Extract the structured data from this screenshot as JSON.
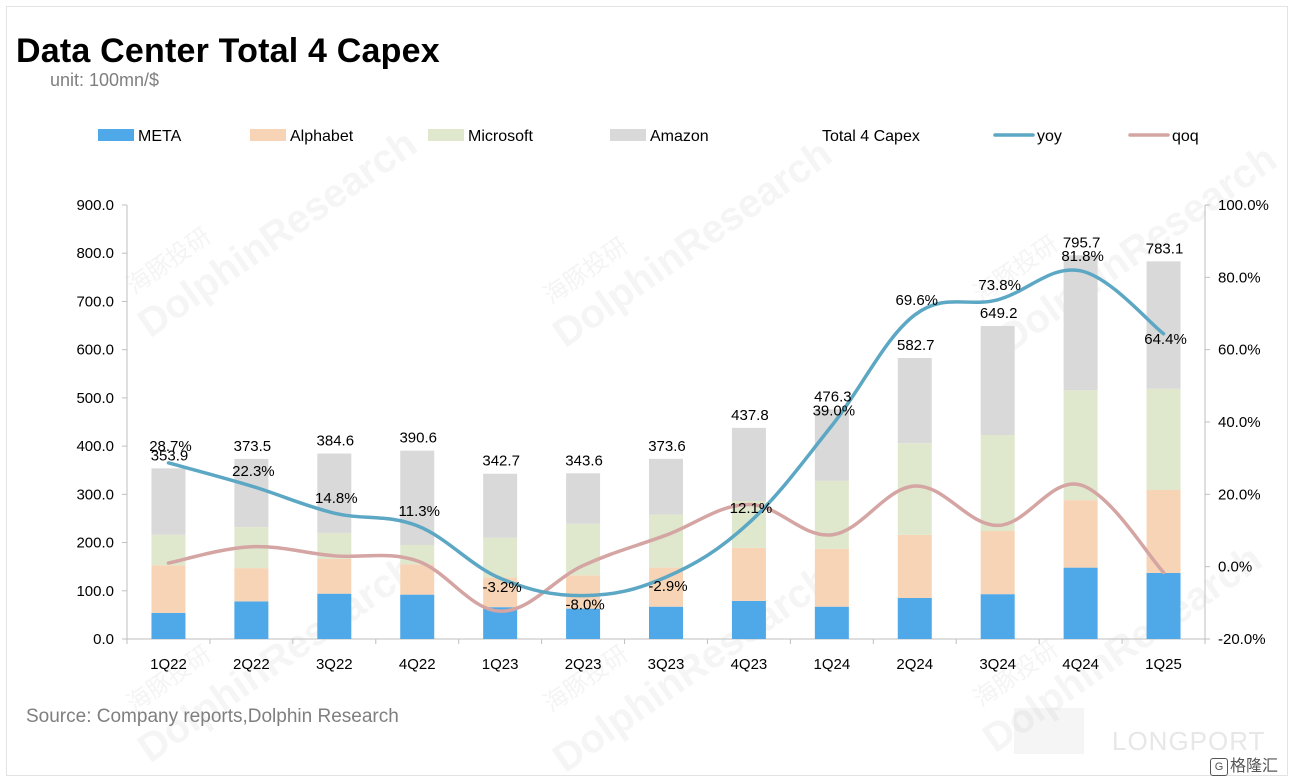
{
  "title": "Data Center Total 4 Capex",
  "unit": "unit: 100mn/$",
  "source": "Source: Company reports,Dolphin Research",
  "watermark": {
    "en": "DolphinResearch",
    "cn": "海豚投研",
    "brand": "LONGPORT",
    "logo_text": "格隆汇",
    "logo_glyph": "G"
  },
  "colors": {
    "meta": "#4fa9e8",
    "alphabet": "#f7d4b6",
    "microsoft": "#dfe8cc",
    "amazon": "#d9d9d9",
    "yoy": "#5ba7c4",
    "qoq": "#d4a5a3",
    "axis": "#bfbfbf",
    "text": "#000000"
  },
  "chart_data": {
    "type": "bar",
    "stacked": true,
    "categories": [
      "1Q22",
      "2Q22",
      "3Q22",
      "4Q22",
      "1Q23",
      "2Q23",
      "3Q23",
      "4Q23",
      "1Q24",
      "2Q24",
      "3Q24",
      "4Q24",
      "1Q25"
    ],
    "series": [
      {
        "name": "META",
        "key": "meta",
        "values": [
          54,
          78,
          94,
          92,
          66,
          63,
          67,
          79,
          67,
          85,
          93,
          148,
          137
        ]
      },
      {
        "name": "Alphabet",
        "key": "alphabet",
        "values": [
          99,
          69,
          72,
          63,
          62,
          69,
          81,
          110,
          120,
          131,
          131,
          140,
          172
        ]
      },
      {
        "name": "Microsoft",
        "key": "microsoft",
        "values": [
          63,
          85,
          54,
          40,
          82,
          107,
          110,
          97,
          141,
          190,
          199,
          228,
          210
        ]
      },
      {
        "name": "Amazon",
        "key": "amazon",
        "values": [
          137.9,
          141.5,
          164.6,
          195.6,
          132.7,
          104.6,
          115.6,
          151.8,
          148.3,
          176.7,
          226.2,
          279.7,
          264.1
        ]
      }
    ],
    "totals": {
      "name": "Total 4 Capex",
      "values": [
        353.9,
        373.5,
        384.6,
        390.6,
        342.7,
        343.6,
        373.6,
        437.8,
        476.3,
        582.7,
        649.2,
        795.7,
        783.1
      ],
      "labels": [
        "353.9",
        "373.5",
        "384.6",
        "390.6",
        "342.7",
        "343.6",
        "373.6",
        "437.8",
        "476.3",
        "582.7",
        "649.2",
        "795.7",
        "783.1"
      ]
    },
    "lines": [
      {
        "name": "yoy",
        "key": "yoy",
        "axis": "right",
        "values": [
          28.7,
          22.3,
          14.8,
          11.3,
          -3.2,
          -8.0,
          -2.9,
          12.1,
          39.0,
          69.6,
          73.8,
          81.8,
          64.4
        ],
        "labels": [
          "28.7%",
          "22.3%",
          "14.8%",
          "11.3%",
          "-3.2%",
          "-8.0%",
          "-2.9%",
          "12.1%",
          "39.0%",
          "69.6%",
          "73.8%",
          "81.8%",
          "64.4%"
        ]
      },
      {
        "name": "qoq",
        "key": "qoq",
        "axis": "right",
        "values": [
          1.0,
          5.5,
          3.0,
          1.6,
          -12.3,
          0.3,
          8.7,
          17.2,
          8.8,
          22.3,
          11.4,
          22.6,
          -1.6
        ]
      }
    ],
    "legend": [
      "META",
      "Alphabet",
      "Microsoft",
      "Amazon",
      "Total 4 Capex",
      "yoy",
      "qoq"
    ],
    "y_left": {
      "min": 0,
      "max": 900,
      "ticks": [
        "0.0",
        "100.0",
        "200.0",
        "300.0",
        "400.0",
        "500.0",
        "600.0",
        "700.0",
        "800.0",
        "900.0"
      ]
    },
    "y_right": {
      "min": -20,
      "max": 100,
      "ticks": [
        "-20.0%",
        "0.0%",
        "20.0%",
        "40.0%",
        "60.0%",
        "80.0%",
        "100.0%"
      ]
    },
    "legend_position": "top"
  }
}
